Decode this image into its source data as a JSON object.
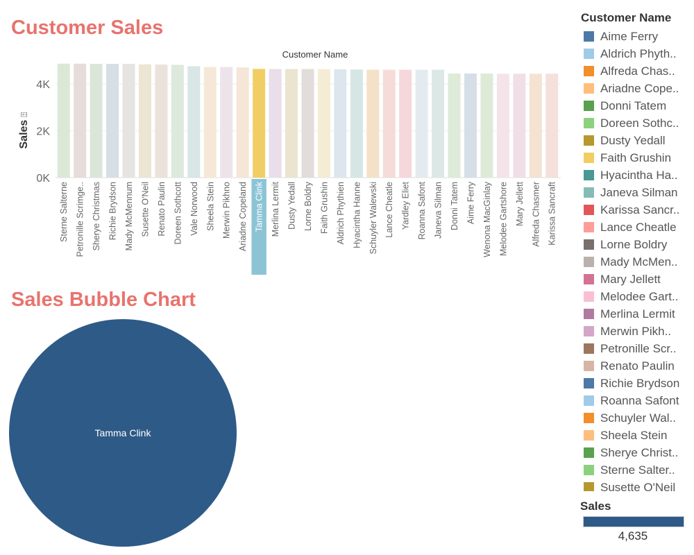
{
  "bar_chart": {
    "title": "Customer Sales",
    "header": "Customer Name",
    "ylabel": "Sales",
    "ylabel_marker": "⍐"
  },
  "bubble_chart": {
    "title": "Sales Bubble Chart"
  },
  "legend": {
    "title": "Customer Name",
    "items": [
      {
        "label": "Aime Ferry",
        "color": "#4e79a7"
      },
      {
        "label": "Aldrich Phyth..",
        "color": "#a0cbe8"
      },
      {
        "label": "Alfreda Chas..",
        "color": "#f28e2b"
      },
      {
        "label": "Ariadne Cope..",
        "color": "#ffbe7d"
      },
      {
        "label": "Donni Tatem",
        "color": "#59a14f"
      },
      {
        "label": "Doreen Sothc..",
        "color": "#8cd17d"
      },
      {
        "label": "Dusty Yedall",
        "color": "#b6992d"
      },
      {
        "label": "Faith Grushin",
        "color": "#f1ce63"
      },
      {
        "label": "Hyacintha Ha..",
        "color": "#499894"
      },
      {
        "label": "Janeva Silman",
        "color": "#86bcb6"
      },
      {
        "label": "Karissa Sancr..",
        "color": "#e15759"
      },
      {
        "label": "Lance Cheatle",
        "color": "#ff9d9a"
      },
      {
        "label": "Lorne Boldry",
        "color": "#79706e"
      },
      {
        "label": "Mady McMen..",
        "color": "#bab0ac"
      },
      {
        "label": "Mary Jellett",
        "color": "#d37295"
      },
      {
        "label": "Melodee Gart..",
        "color": "#fabfd2"
      },
      {
        "label": "Merlina Lermit",
        "color": "#b07aa1"
      },
      {
        "label": "Merwin Pikh..",
        "color": "#d4a6c8"
      },
      {
        "label": "Petronille Scr..",
        "color": "#9d7660"
      },
      {
        "label": "Renato Paulin",
        "color": "#d7b5a6"
      },
      {
        "label": "Richie Brydson",
        "color": "#4e79a7"
      },
      {
        "label": "Roanna Safont",
        "color": "#a0cbe8"
      },
      {
        "label": "Schuyler Wal..",
        "color": "#f28e2b"
      },
      {
        "label": "Sheela Stein",
        "color": "#ffbe7d"
      },
      {
        "label": "Sherye Christ..",
        "color": "#59a14f"
      },
      {
        "label": "Sterne Salter..",
        "color": "#8cd17d"
      },
      {
        "label": "Susette O'Neil",
        "color": "#b6992d"
      }
    ]
  },
  "sales_legend": {
    "title": "Sales",
    "value": "4,635",
    "color": "#2e5a87"
  },
  "chart_data": [
    {
      "type": "bar",
      "title": "Customer Sales",
      "xlabel": "Customer Name",
      "ylabel": "Sales",
      "ylim": [
        0,
        5000
      ],
      "yticks": [
        0,
        2000,
        4000
      ],
      "ytick_labels": [
        "0K",
        "2K",
        "4K"
      ],
      "highlighted": "Tamma Clink",
      "highlight_color": "#f1ce63",
      "highlight_label_bg": "#8cc4d6",
      "categories": [
        "Sterne Salterne",
        "Petronille Scrimge..",
        "Sherye Christmas",
        "Richie Brydson",
        "Mady McMennum",
        "Susette O'Neil",
        "Renato Paulin",
        "Doreen Sothcott",
        "Vale Norwood",
        "Sheela Stein",
        "Merwin Pikhno",
        "Ariadne Copeland",
        "Tamma Clink",
        "Merlina Lermit",
        "Dusty Yedall",
        "Lorne Boldry",
        "Faith Grushin",
        "Aldrich Phythien",
        "Hyacintha Hanne",
        "Schuyler Walewski",
        "Lance Cheatle",
        "Yardley Eliet",
        "Roanna Safont",
        "Janeva Silman",
        "Donni Tatem",
        "Aime Ferry",
        "Wenona MacGinlay",
        "Melodee Gartshore",
        "Mary Jellett",
        "Alfreda Chasmer",
        "Karissa Sancraft"
      ],
      "values": [
        4860,
        4860,
        4850,
        4850,
        4850,
        4830,
        4820,
        4810,
        4750,
        4720,
        4720,
        4700,
        4635,
        4630,
        4630,
        4630,
        4630,
        4620,
        4610,
        4600,
        4600,
        4600,
        4600,
        4600,
        4440,
        4440,
        4440,
        4430,
        4430,
        4430,
        4430
      ],
      "colors": [
        "#dbe8d6",
        "#e6dcda",
        "#dbe6da",
        "#d6dee6",
        "#e6e4e3",
        "#ece5d4",
        "#ebe2dc",
        "#dde9dc",
        "#d8e6e5",
        "#f5e8d8",
        "#ede3ea",
        "#f5e6d8",
        "#f1ce63",
        "#e9deea",
        "#ebe4d1",
        "#e2dddb",
        "#f5ecd5",
        "#dde6ec",
        "#d6e6e5",
        "#f5e0c8",
        "#f5dcd8",
        "#f5d8dc",
        "#e3ebf0",
        "#dce8e6",
        "#deebd9",
        "#d6dfe8",
        "#deead8",
        "#f5e3ea",
        "#f0dfe6",
        "#f5e2d3",
        "#f5e0dc"
      ]
    },
    {
      "type": "bubble",
      "title": "Sales Bubble Chart",
      "bubbles": [
        {
          "label": "Tamma Clink",
          "value": 4635,
          "color": "#2e5a87"
        }
      ]
    }
  ]
}
